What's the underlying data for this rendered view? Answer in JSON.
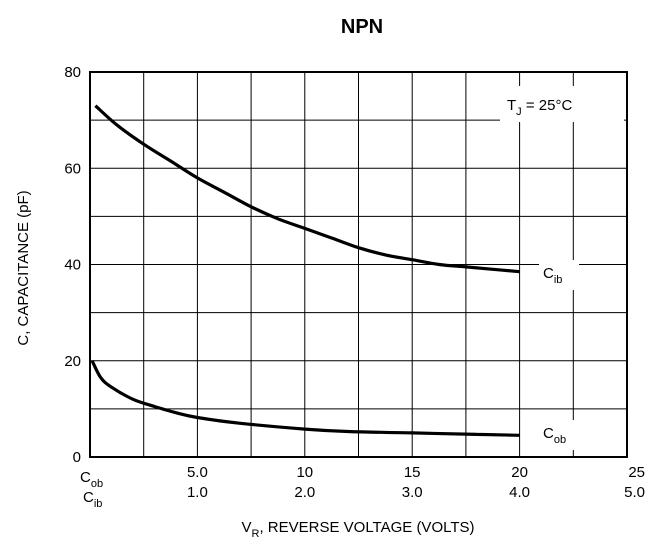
{
  "chart_data": {
    "type": "line",
    "title": "NPN",
    "xlabel": {
      "main": "V",
      "sub": "R",
      "rest": ", REVERSE VOLTAGE (VOLTS)"
    },
    "ylabel": "C, CAPACITANCE (pF)",
    "annotation": {
      "main": "T",
      "sub": "J",
      "rest": " = 25°C"
    },
    "ylim": [
      0,
      80
    ],
    "y_ticks": [
      "0",
      "20",
      "40",
      "60",
      "80"
    ],
    "x_axes": [
      {
        "series": "Cob",
        "label_main": "C",
        "label_sub": "ob",
        "xlim": [
          0,
          25
        ],
        "ticks": [
          "5.0",
          "10",
          "15",
          "20",
          "25"
        ]
      },
      {
        "series": "Cib",
        "label_main": "C",
        "label_sub": "ib",
        "xlim": [
          0,
          5
        ],
        "ticks": [
          "1.0",
          "2.0",
          "3.0",
          "4.0",
          "5.0"
        ]
      }
    ],
    "grid": true,
    "series": [
      {
        "name": "Cib",
        "label_main": "C",
        "label_sub": "ib",
        "x_axis": "Cib",
        "x": [
          0.05,
          0.25,
          0.5,
          0.75,
          1.0,
          1.25,
          1.5,
          1.75,
          2.0,
          2.25,
          2.5,
          2.75,
          3.0,
          3.25,
          3.5,
          3.75,
          4.0
        ],
        "y": [
          73,
          69,
          65,
          61.5,
          58,
          55,
          52,
          49.5,
          47.5,
          45.5,
          43.5,
          42,
          41,
          40,
          39.5,
          39,
          38.5
        ]
      },
      {
        "name": "Cob",
        "label_main": "C",
        "label_sub": "ob",
        "x_axis": "Cob",
        "x": [
          0.1,
          0.5,
          1.0,
          2.0,
          3.0,
          4.0,
          5.0,
          7.0,
          10,
          12,
          15,
          18,
          20
        ],
        "y": [
          20,
          16.5,
          14.5,
          12,
          10.5,
          9.2,
          8.2,
          7,
          5.8,
          5.3,
          5,
          4.7,
          4.5
        ]
      }
    ]
  }
}
